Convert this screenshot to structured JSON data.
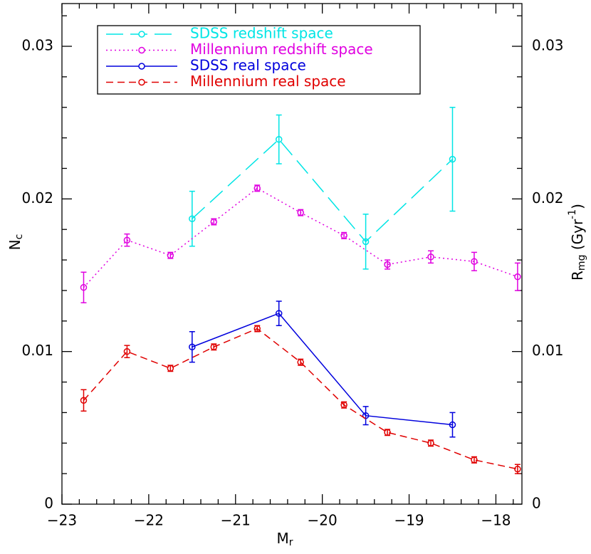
{
  "chart_data": {
    "type": "line",
    "xlabel": "M",
    "xlabel_sub": "r",
    "ylabel": "N",
    "ylabel_sub": "c",
    "y2label": {
      "parts": [
        "R",
        "mg",
        " (Gyr",
        "-1",
        ")"
      ],
      "styles": [
        "normal",
        "sub",
        "normal",
        "sup",
        "normal"
      ]
    },
    "xlim": [
      -23,
      -17.7
    ],
    "xticks": [
      {
        "value": -23,
        "label": "−23"
      },
      {
        "value": -22,
        "label": "−22"
      },
      {
        "value": -21,
        "label": "−21"
      },
      {
        "value": -20,
        "label": "−20"
      },
      {
        "value": -19,
        "label": "−19"
      },
      {
        "value": -18,
        "label": "−18"
      }
    ],
    "xminorticks": [
      -22.8,
      -22.6,
      -22.4,
      -22.2,
      -21.8,
      -21.6,
      -21.4,
      -21.2,
      -20.8,
      -20.6,
      -20.4,
      -20.2,
      -19.8,
      -19.6,
      -19.4,
      -19.2,
      -18.8,
      -18.6,
      -18.4,
      -18.2,
      -17.8
    ],
    "ylim": [
      0,
      0.0328
    ],
    "yticks": [
      0,
      0.01,
      0.02,
      0.03
    ],
    "yminorticks": [
      0.002,
      0.004,
      0.006,
      0.008,
      0.012,
      0.014,
      0.016,
      0.018,
      0.022,
      0.024,
      0.026,
      0.028,
      0.032
    ],
    "y2lim": [
      0,
      0.0328
    ],
    "y2ticks": [
      0,
      0.01,
      0.02,
      0.03
    ],
    "legend": "upper left",
    "series": [
      {
        "name": "SDSS redshift space",
        "color": "#00e5e5",
        "linestyle": "long-dashed",
        "x": [
          -21.5,
          -20.5,
          -19.5,
          -18.5
        ],
        "values": [
          0.0187,
          0.0239,
          0.0172,
          0.0226
        ],
        "errors": [
          0.0018,
          0.0016,
          0.0018,
          0.0034
        ]
      },
      {
        "name": "Millennium redshift space",
        "color": "#e000e0",
        "linestyle": "dotted",
        "x": [
          -22.75,
          -22.25,
          -21.75,
          -21.25,
          -20.75,
          -20.25,
          -19.75,
          -19.25,
          -18.75,
          -18.25,
          -17.75
        ],
        "values": [
          0.0142,
          0.0173,
          0.0163,
          0.0185,
          0.0207,
          0.0191,
          0.0176,
          0.0157,
          0.0162,
          0.0159,
          0.0149
        ],
        "errors": [
          0.001,
          0.0004,
          0.0002,
          0.0002,
          0.0002,
          0.0002,
          0.0002,
          0.0003,
          0.0004,
          0.0006,
          0.0009
        ]
      },
      {
        "name": "SDSS real space",
        "color": "#0000dd",
        "linestyle": "solid",
        "x": [
          -21.5,
          -20.5,
          -19.5,
          -18.5
        ],
        "values": [
          0.0103,
          0.0125,
          0.0058,
          0.0052
        ],
        "errors": [
          0.001,
          0.0008,
          0.0006,
          0.0008
        ]
      },
      {
        "name": "Millennium real space",
        "color": "#e00000",
        "linestyle": "dashed",
        "x": [
          -22.75,
          -22.25,
          -21.75,
          -21.25,
          -20.75,
          -20.25,
          -19.75,
          -19.25,
          -18.75,
          -18.25,
          -17.75
        ],
        "values": [
          0.0068,
          0.01,
          0.0089,
          0.0103,
          0.0115,
          0.0093,
          0.0065,
          0.0047,
          0.004,
          0.0029,
          0.0023
        ],
        "errors": [
          0.0007,
          0.0004,
          0.0002,
          0.0002,
          0.0002,
          0.0002,
          0.0002,
          0.0002,
          0.0002,
          0.0002,
          0.0003
        ]
      }
    ]
  }
}
